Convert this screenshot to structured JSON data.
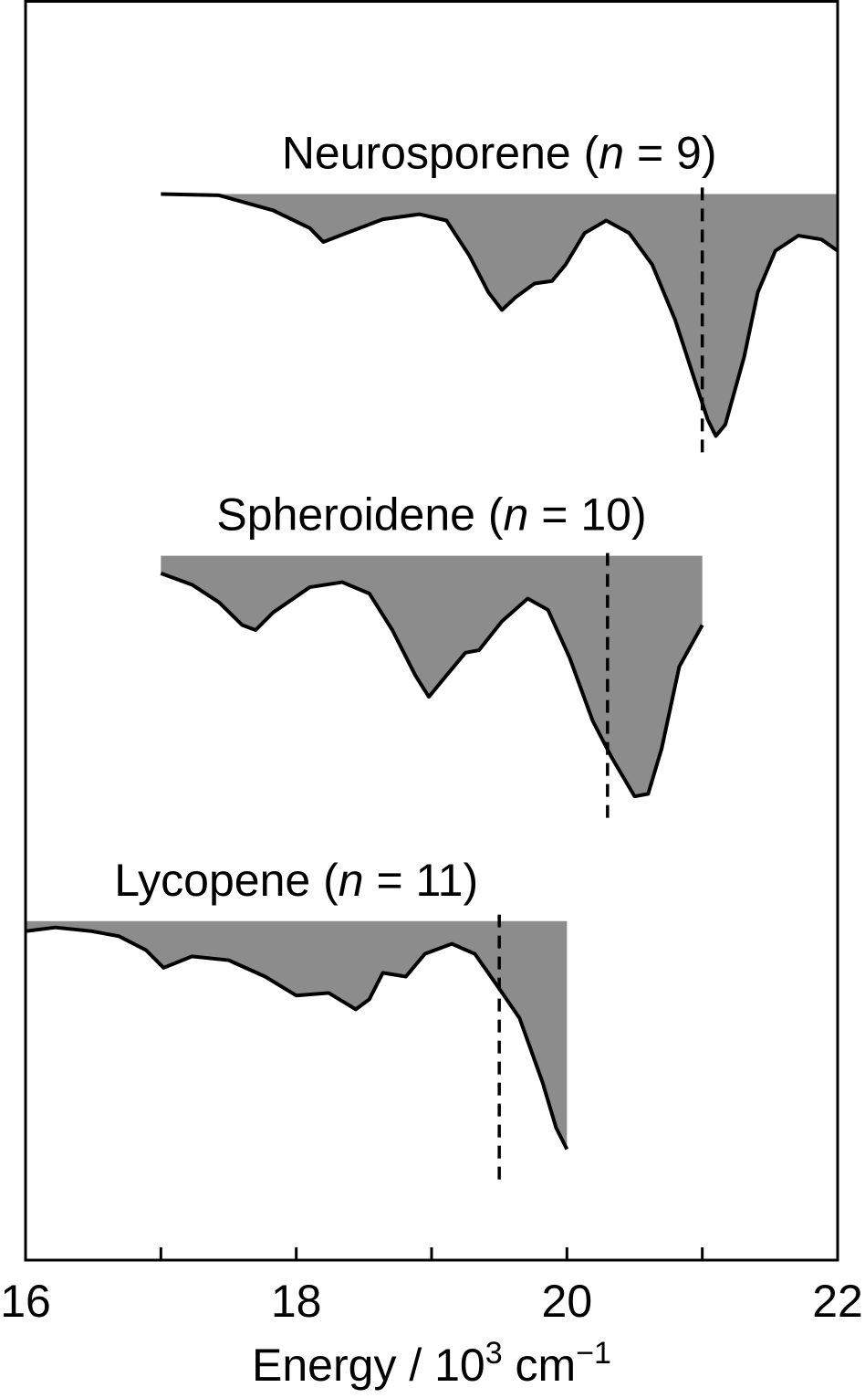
{
  "chart_data": {
    "type": "line",
    "xlabel": [
      "Energy / 10",
      "3",
      " cm",
      "−1"
    ],
    "xlim": [
      16,
      22
    ],
    "ylim": [
      0,
      100
    ],
    "xticks": [
      16,
      18,
      20,
      22
    ],
    "xminorticks": [
      17,
      19,
      21
    ],
    "fill_color": "#8c8c8c",
    "line_color": "#000000",
    "series": [
      {
        "name": [
          "Neurosporene (",
          "n",
          " = 9)"
        ],
        "baseline": 84.6,
        "x": [
          17.0,
          17.43,
          17.83,
          18.1,
          18.2,
          18.37,
          18.64,
          18.91,
          19.11,
          19.28,
          19.42,
          19.52,
          19.62,
          19.76,
          19.89,
          19.99,
          20.13,
          20.29,
          20.46,
          20.63,
          20.8,
          20.93,
          21.04,
          21.1,
          21.17,
          21.31,
          21.41,
          21.54,
          21.71,
          21.88,
          22.0
        ],
        "values": [
          84.6,
          84.5,
          83.3,
          81.9,
          80.8,
          81.5,
          82.6,
          83.0,
          82.5,
          79.7,
          76.8,
          75.4,
          76.4,
          77.5,
          77.7,
          79.0,
          81.5,
          82.5,
          81.5,
          79.0,
          74.6,
          70.3,
          66.7,
          65.4,
          66.3,
          71.7,
          76.8,
          80.1,
          81.3,
          81.0,
          80.1
        ],
        "marker_x": 21.0,
        "marker_y": [
          64.1,
          85.6
        ]
      },
      {
        "name": [
          "Spheroidene (",
          "n",
          " = 10)"
        ],
        "baseline": 55.9,
        "x": [
          17.0,
          17.23,
          17.43,
          17.6,
          17.7,
          17.83,
          18.1,
          18.34,
          18.54,
          18.71,
          18.88,
          18.98,
          19.11,
          19.25,
          19.35,
          19.52,
          19.71,
          19.86,
          20.02,
          20.19,
          20.33,
          20.5,
          20.6,
          20.7,
          20.83,
          21.0
        ],
        "values": [
          54.5,
          53.6,
          52.2,
          50.4,
          50.0,
          51.4,
          53.4,
          53.8,
          52.9,
          50.0,
          46.4,
          44.7,
          46.4,
          48.2,
          48.4,
          50.7,
          52.5,
          51.6,
          47.8,
          42.8,
          39.9,
          36.8,
          37.0,
          40.6,
          47.1,
          50.4
        ],
        "marker_x": 20.3,
        "marker_y": [
          35.1,
          56.7
        ]
      },
      {
        "name": [
          "Lycopene (",
          "n",
          " = 11)"
        ],
        "baseline": 26.9,
        "x": [
          16.0,
          16.22,
          16.49,
          16.69,
          16.89,
          17.02,
          17.23,
          17.5,
          17.77,
          18.0,
          18.24,
          18.44,
          18.54,
          18.64,
          18.81,
          18.95,
          19.15,
          19.32,
          19.49,
          19.65,
          19.82,
          19.92,
          20.0
        ],
        "values": [
          26.1,
          26.4,
          26.1,
          25.7,
          24.6,
          23.2,
          24.1,
          23.8,
          22.5,
          21.0,
          21.2,
          19.9,
          20.7,
          22.8,
          22.5,
          24.3,
          25.1,
          24.3,
          21.7,
          19.2,
          14.1,
          10.5,
          8.8
        ],
        "marker_x": 19.5,
        "marker_y": [
          6.4,
          27.9
        ]
      }
    ]
  }
}
